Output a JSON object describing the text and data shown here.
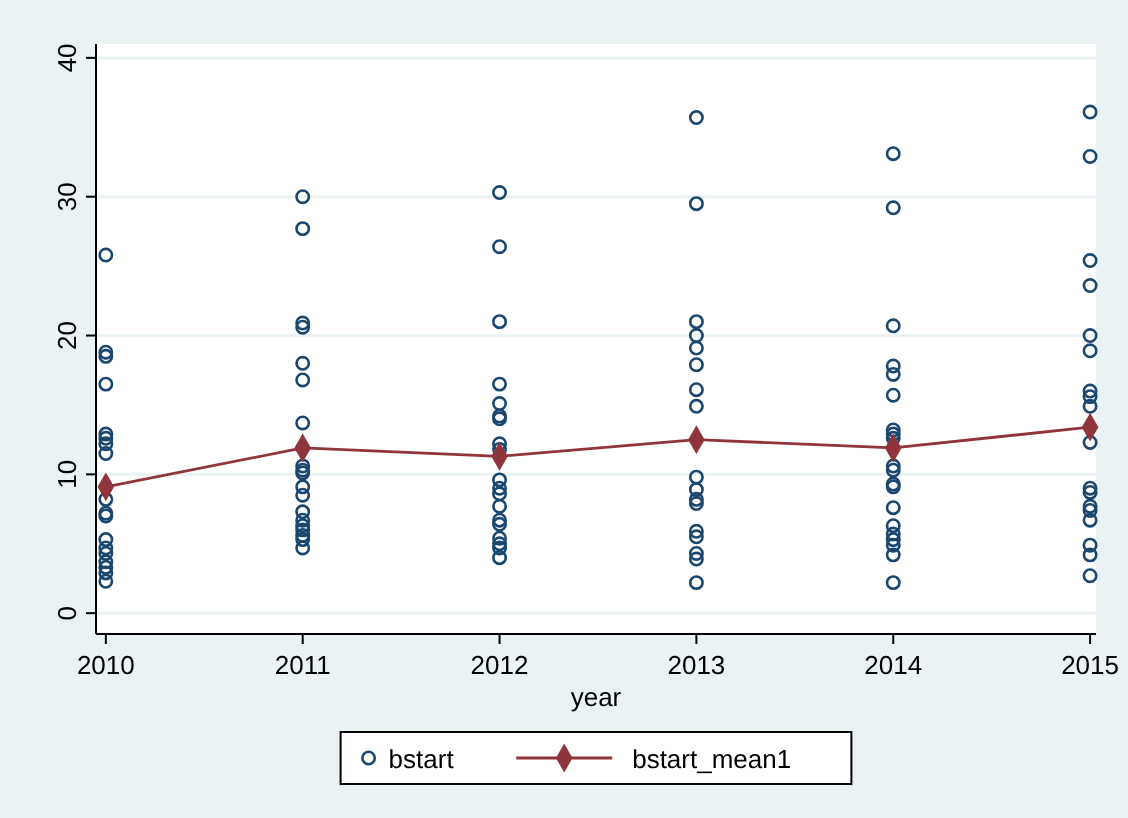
{
  "chart_data": {
    "type": "scatter",
    "xlabel": "year",
    "xlim": [
      2009.95,
      2015.03
    ],
    "xticks": [
      2010,
      2011,
      2012,
      2013,
      2014,
      2015
    ],
    "ylim": [
      -1.5,
      41
    ],
    "yticks": [
      0,
      10,
      20,
      30,
      40
    ],
    "grid": "y",
    "legend": "bottom",
    "series": [
      {
        "name": "bstart",
        "marker": "circle",
        "color": "#1a476f",
        "x": [
          2010,
          2010,
          2010,
          2010,
          2010,
          2010,
          2010,
          2010,
          2010,
          2010,
          2010,
          2010,
          2010,
          2010,
          2010,
          2010,
          2010,
          2010,
          2011,
          2011,
          2011,
          2011,
          2011,
          2011,
          2011,
          2011,
          2011,
          2011,
          2011,
          2011,
          2011,
          2011,
          2011,
          2011,
          2011,
          2011,
          2011,
          2012,
          2012,
          2012,
          2012,
          2012,
          2012,
          2012,
          2012,
          2012,
          2012,
          2012,
          2012,
          2012,
          2012,
          2012,
          2012,
          2012,
          2012,
          2012,
          2013,
          2013,
          2013,
          2013,
          2013,
          2013,
          2013,
          2013,
          2013,
          2013,
          2013,
          2013,
          2013,
          2013,
          2013,
          2013,
          2013,
          2014,
          2014,
          2014,
          2014,
          2014,
          2014,
          2014,
          2014,
          2014,
          2014,
          2014,
          2014,
          2014,
          2014,
          2014,
          2014,
          2014,
          2014,
          2014,
          2014,
          2015,
          2015,
          2015,
          2015,
          2015,
          2015,
          2015,
          2015,
          2015,
          2015,
          2015,
          2015,
          2015,
          2015,
          2015,
          2015,
          2015,
          2015
        ],
        "values": [
          25.8,
          18.8,
          18.5,
          16.5,
          12.9,
          12.6,
          12.2,
          11.5,
          8.2,
          7.2,
          7.0,
          5.3,
          4.7,
          4.3,
          3.7,
          3.3,
          2.9,
          2.3,
          30.0,
          27.7,
          20.9,
          20.6,
          18.0,
          16.8,
          13.7,
          10.6,
          10.3,
          10.1,
          9.1,
          8.5,
          7.3,
          6.7,
          6.3,
          6.0,
          5.6,
          5.3,
          4.7,
          30.3,
          26.4,
          21.0,
          16.5,
          15.1,
          14.2,
          14.0,
          12.2,
          11.8,
          9.6,
          9.0,
          8.6,
          7.7,
          6.7,
          6.4,
          5.4,
          5.0,
          4.7,
          4.0,
          35.7,
          29.5,
          21.0,
          20.0,
          19.1,
          17.9,
          16.1,
          14.9,
          9.8,
          8.9,
          8.2,
          7.9,
          5.9,
          5.5,
          4.3,
          3.9,
          2.2,
          33.1,
          29.2,
          20.7,
          17.8,
          17.2,
          15.7,
          13.2,
          12.9,
          12.6,
          10.6,
          10.3,
          9.3,
          9.1,
          7.6,
          6.3,
          5.7,
          5.3,
          4.9,
          4.2,
          2.2,
          36.1,
          32.9,
          25.4,
          23.6,
          20.0,
          18.9,
          16.0,
          15.6,
          14.9,
          12.3,
          9.0,
          8.7,
          7.7,
          7.4,
          6.7,
          4.9,
          4.2,
          2.7
        ]
      },
      {
        "name": "bstart_mean1",
        "type": "line",
        "marker": "diamond",
        "color": "#90353b",
        "x": [
          2010,
          2011,
          2012,
          2013,
          2014,
          2015
        ],
        "values": [
          9.1,
          11.9,
          11.3,
          12.5,
          11.9,
          13.4
        ]
      }
    ]
  }
}
